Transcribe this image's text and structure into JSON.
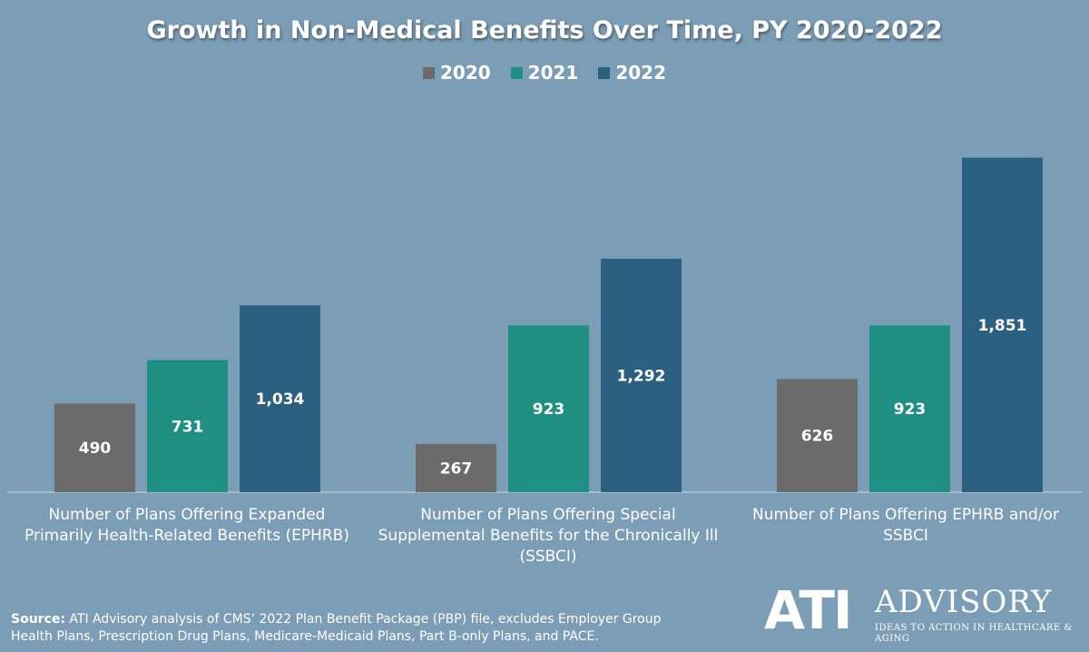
{
  "chart_data": {
    "type": "bar",
    "title": "Growth in Non-Medical Benefits Over Time, PY 2020-2022",
    "categories": [
      "Number of Plans Offering Expanded Primarily Health-Related Benefits (EPHRB)",
      "Number of Plans Offering Special Supplemental Benefits for the Chronically Ill (SSBCI)",
      "Number of Plans Offering EPHRB and/or SSBCI"
    ],
    "series": [
      {
        "name": "2020",
        "color": "#6b6b6b",
        "values": [
          490,
          267,
          626
        ],
        "labels": [
          "490",
          "267",
          "626"
        ]
      },
      {
        "name": "2021",
        "color": "#1f8f83",
        "values": [
          731,
          923,
          923
        ],
        "labels": [
          "731",
          "923",
          "923"
        ]
      },
      {
        "name": "2022",
        "color": "#2c6080",
        "values": [
          1034,
          1292,
          1851
        ],
        "labels": [
          "1,034",
          "1,292",
          "1,851"
        ]
      }
    ],
    "ylim": [
      0,
      2000
    ],
    "grid": false,
    "legend_position": "top"
  },
  "source": {
    "label": "Source:",
    "text": " ATI Advisory analysis of CMS’ 2022 Plan Benefit Package (PBP) file, excludes Employer Group Health Plans, Prescription Drug Plans, Medicare-Medicaid Plans, Part B-only Plans, and PACE."
  },
  "logo": {
    "mark": "ATI",
    "word": "ADVISORY",
    "tagline": "IDEAS TO ACTION IN HEALTHCARE & AGING"
  }
}
